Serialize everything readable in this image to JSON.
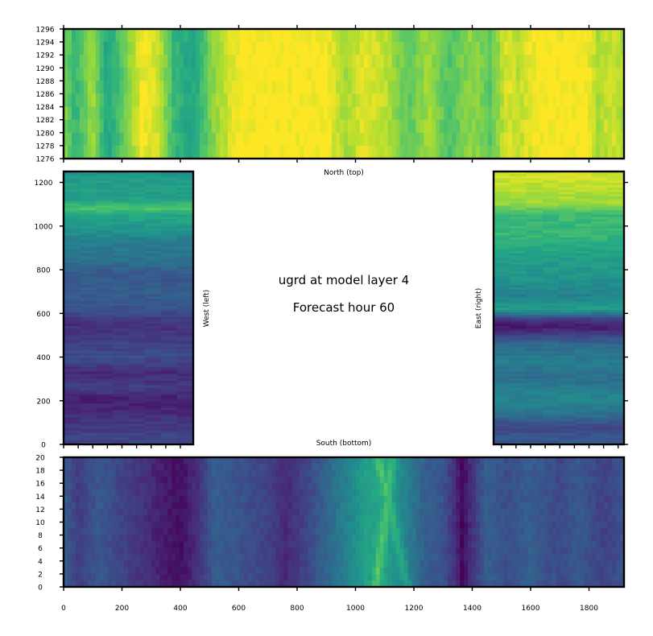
{
  "chart_data": [
    {
      "type": "heatmap",
      "panel": "north",
      "title": "North (top)",
      "xlim": [
        0,
        1920
      ],
      "ylim": [
        1276,
        1296
      ],
      "x_ticks": [
        0,
        200,
        400,
        600,
        800,
        1000,
        1200,
        1400,
        1600,
        1800
      ],
      "y_ticks": [
        "1276",
        "1278",
        "1280",
        "1282",
        "1284",
        "1286",
        "1288",
        "1290",
        "1292",
        "1294",
        "1296"
      ],
      "colormap": "viridis",
      "column_profile": [
        {
          "x": 0,
          "v": 0.82
        },
        {
          "x": 40,
          "v": 0.66
        },
        {
          "x": 100,
          "v": 0.86
        },
        {
          "x": 150,
          "v": 0.58
        },
        {
          "x": 200,
          "v": 0.74
        },
        {
          "x": 270,
          "v": 0.98
        },
        {
          "x": 320,
          "v": 0.94
        },
        {
          "x": 380,
          "v": 0.66
        },
        {
          "x": 440,
          "v": 0.58
        },
        {
          "x": 520,
          "v": 0.84
        },
        {
          "x": 600,
          "v": 1.0
        },
        {
          "x": 900,
          "v": 1.0
        },
        {
          "x": 960,
          "v": 0.86
        },
        {
          "x": 1030,
          "v": 0.96
        },
        {
          "x": 1110,
          "v": 0.9
        },
        {
          "x": 1180,
          "v": 0.74
        },
        {
          "x": 1250,
          "v": 0.86
        },
        {
          "x": 1320,
          "v": 0.72
        },
        {
          "x": 1400,
          "v": 0.84
        },
        {
          "x": 1460,
          "v": 0.74
        },
        {
          "x": 1520,
          "v": 0.95
        },
        {
          "x": 1560,
          "v": 0.9
        },
        {
          "x": 1620,
          "v": 1.0
        },
        {
          "x": 1790,
          "v": 1.0
        },
        {
          "x": 1830,
          "v": 0.88
        },
        {
          "x": 1880,
          "v": 0.93
        },
        {
          "x": 1920,
          "v": 0.86
        }
      ]
    },
    {
      "type": "heatmap",
      "panel": "west",
      "title": "West (left)",
      "xlim": [
        0,
        445
      ],
      "ylim": [
        0,
        1250
      ],
      "y_ticks": [
        "0",
        "200",
        "400",
        "600",
        "800",
        "1000",
        "1200"
      ],
      "colormap": "viridis",
      "row_profile": [
        {
          "y": 0,
          "v": 0.22
        },
        {
          "y": 80,
          "v": 0.18
        },
        {
          "y": 150,
          "v": 0.12
        },
        {
          "y": 200,
          "v": 0.08
        },
        {
          "y": 260,
          "v": 0.18
        },
        {
          "y": 330,
          "v": 0.12
        },
        {
          "y": 400,
          "v": 0.24
        },
        {
          "y": 480,
          "v": 0.18
        },
        {
          "y": 550,
          "v": 0.14
        },
        {
          "y": 620,
          "v": 0.26
        },
        {
          "y": 700,
          "v": 0.3
        },
        {
          "y": 780,
          "v": 0.28
        },
        {
          "y": 850,
          "v": 0.38
        },
        {
          "y": 930,
          "v": 0.42
        },
        {
          "y": 980,
          "v": 0.52
        },
        {
          "y": 1050,
          "v": 0.6
        },
        {
          "y": 1080,
          "v": 0.72
        },
        {
          "y": 1120,
          "v": 0.58
        },
        {
          "y": 1200,
          "v": 0.55
        },
        {
          "y": 1250,
          "v": 0.52
        }
      ]
    },
    {
      "type": "heatmap",
      "panel": "east",
      "title": "East (right)",
      "xlim": [
        1475,
        1920
      ],
      "ylim": [
        0,
        1250
      ],
      "y_ticks": [
        "0",
        "200",
        "400",
        "600",
        "800",
        "1000",
        "1200"
      ],
      "colormap": "viridis",
      "row_profile": [
        {
          "y": 0,
          "v": 0.3
        },
        {
          "y": 80,
          "v": 0.22
        },
        {
          "y": 150,
          "v": 0.4
        },
        {
          "y": 220,
          "v": 0.46
        },
        {
          "y": 300,
          "v": 0.36
        },
        {
          "y": 380,
          "v": 0.42
        },
        {
          "y": 450,
          "v": 0.36
        },
        {
          "y": 500,
          "v": 0.2
        },
        {
          "y": 540,
          "v": 0.06
        },
        {
          "y": 570,
          "v": 0.16
        },
        {
          "y": 620,
          "v": 0.56
        },
        {
          "y": 680,
          "v": 0.44
        },
        {
          "y": 760,
          "v": 0.52
        },
        {
          "y": 850,
          "v": 0.55
        },
        {
          "y": 950,
          "v": 0.66
        },
        {
          "y": 1050,
          "v": 0.68
        },
        {
          "y": 1110,
          "v": 0.86
        },
        {
          "y": 1180,
          "v": 0.9
        },
        {
          "y": 1250,
          "v": 0.94
        }
      ]
    },
    {
      "type": "heatmap",
      "panel": "south",
      "title": "South (bottom)",
      "xlim": [
        0,
        1920
      ],
      "ylim": [
        0,
        20
      ],
      "x_ticks": [
        "0",
        "200",
        "400",
        "600",
        "800",
        "1000",
        "1200",
        "1400",
        "1600",
        "1800"
      ],
      "y_ticks": [
        "0",
        "2",
        "4",
        "6",
        "8",
        "10",
        "12",
        "14",
        "16",
        "18",
        "20"
      ],
      "colormap": "viridis",
      "column_profile": [
        {
          "x": 0,
          "v": 0.3
        },
        {
          "x": 50,
          "v": 0.18
        },
        {
          "x": 120,
          "v": 0.28
        },
        {
          "x": 200,
          "v": 0.2
        },
        {
          "x": 280,
          "v": 0.14
        },
        {
          "x": 340,
          "v": 0.08
        },
        {
          "x": 400,
          "v": 0.04
        },
        {
          "x": 460,
          "v": 0.14
        },
        {
          "x": 520,
          "v": 0.3
        },
        {
          "x": 600,
          "v": 0.26
        },
        {
          "x": 700,
          "v": 0.2
        },
        {
          "x": 760,
          "v": 0.12
        },
        {
          "x": 840,
          "v": 0.22
        },
        {
          "x": 920,
          "v": 0.36
        },
        {
          "x": 980,
          "v": 0.46
        },
        {
          "x": 1030,
          "v": 0.56
        },
        {
          "x": 1080,
          "v": 0.6
        },
        {
          "x": 1120,
          "v": 0.55
        },
        {
          "x": 1180,
          "v": 0.42
        },
        {
          "x": 1240,
          "v": 0.3
        },
        {
          "x": 1300,
          "v": 0.26
        },
        {
          "x": 1340,
          "v": 0.14
        },
        {
          "x": 1365,
          "v": 0.02
        },
        {
          "x": 1390,
          "v": 0.12
        },
        {
          "x": 1450,
          "v": 0.3
        },
        {
          "x": 1520,
          "v": 0.24
        },
        {
          "x": 1600,
          "v": 0.3
        },
        {
          "x": 1700,
          "v": 0.22
        },
        {
          "x": 1760,
          "v": 0.28
        },
        {
          "x": 1850,
          "v": 0.2
        },
        {
          "x": 1920,
          "v": 0.26
        }
      ]
    }
  ],
  "center_text": {
    "line1": "ugrd at model layer 4",
    "line2": "Forecast hour 60"
  }
}
